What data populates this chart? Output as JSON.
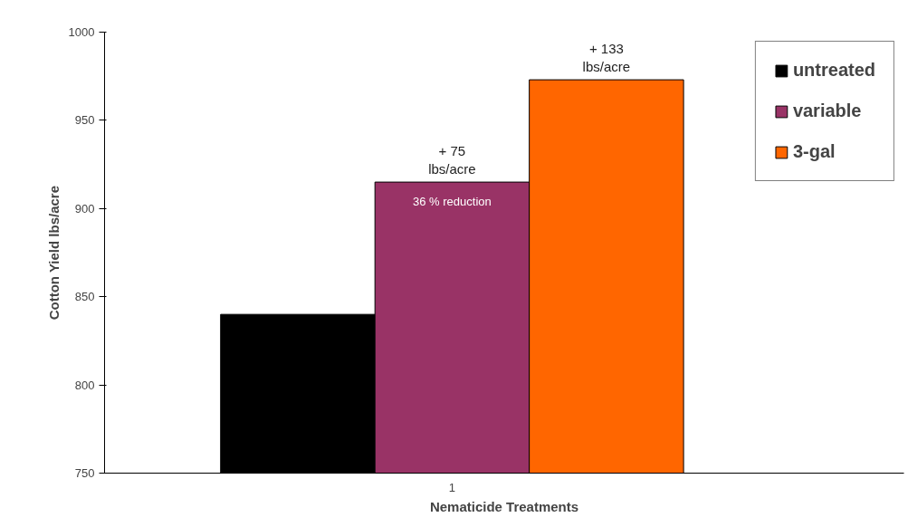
{
  "chart_data": {
    "type": "bar",
    "categories": [
      "1"
    ],
    "xlabel": "Nematicide Treatments",
    "ylabel": "Cotton Yield lbs/acre",
    "series": [
      {
        "name": "untreated",
        "color": "#000000",
        "values": [
          840
        ]
      },
      {
        "name": "variable",
        "color": "#993366",
        "values": [
          915
        ]
      },
      {
        "name": "3-gal",
        "color": "#ff6600",
        "values": [
          973
        ]
      }
    ],
    "annotations": [
      "+ 75\nlbs/acre",
      "+ 133\nlbs/acre",
      "36 % reduction"
    ],
    "ylim": [
      750,
      1000
    ],
    "yticks": [
      750,
      800,
      850,
      900,
      950,
      1000
    ],
    "grid": false,
    "legend": "top right"
  }
}
